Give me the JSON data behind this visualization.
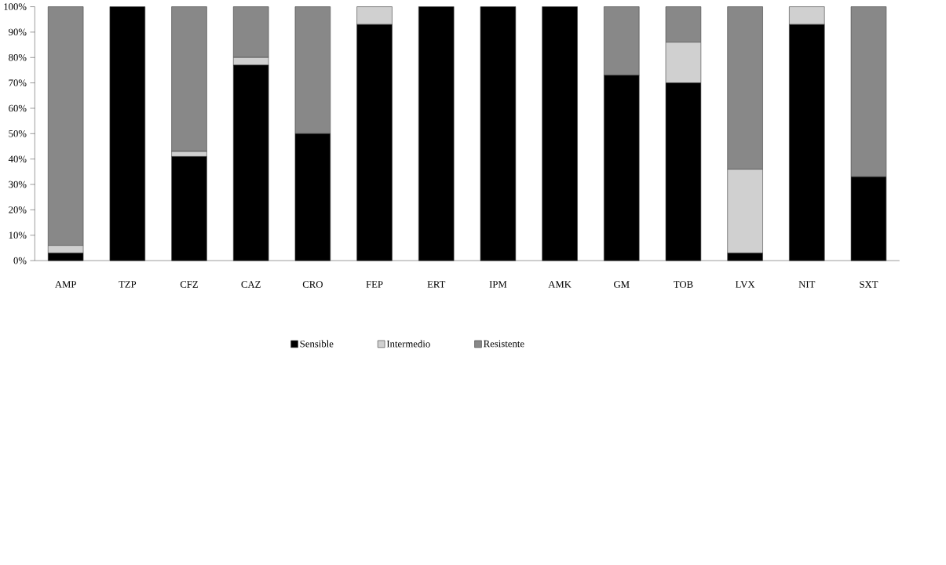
{
  "chart_data": {
    "type": "bar",
    "stacked": true,
    "grid": false,
    "legend": "bottom",
    "categories": [
      "AMP",
      "TZP",
      "CFZ",
      "CAZ",
      "CRO",
      "FEP",
      "ERT",
      "IPM",
      "AMK",
      "GM",
      "TOB",
      "LVX",
      "NIT",
      "SXT"
    ],
    "ylim": [
      0,
      100
    ],
    "yticks": [
      {
        "value": 0,
        "label": "0%"
      },
      {
        "value": 10,
        "label": "10%"
      },
      {
        "value": 20,
        "label": "20%"
      },
      {
        "value": 30,
        "label": "30%"
      },
      {
        "value": 40,
        "label": "40%"
      },
      {
        "value": 50,
        "label": "50%"
      },
      {
        "value": 60,
        "label": "60%"
      },
      {
        "value": 70,
        "label": "70%"
      },
      {
        "value": 80,
        "label": "80%"
      },
      {
        "value": 90,
        "label": "90%"
      },
      {
        "value": 100,
        "label": "100%"
      }
    ],
    "series": [
      {
        "name": "Sensible",
        "color": "#000000",
        "values": [
          3,
          100,
          41,
          77,
          50,
          93,
          100,
          100,
          100,
          73,
          70,
          3,
          93,
          33
        ]
      },
      {
        "name": "Intermedio",
        "color": "#d0d0d0",
        "values": [
          3,
          0,
          2,
          3,
          0,
          7,
          0,
          0,
          0,
          0,
          16,
          33,
          7,
          0
        ]
      },
      {
        "name": "Resistente",
        "color": "#888888",
        "values": [
          94,
          0,
          57,
          20,
          50,
          0,
          0,
          0,
          0,
          27,
          14,
          64,
          0,
          67
        ]
      }
    ]
  }
}
